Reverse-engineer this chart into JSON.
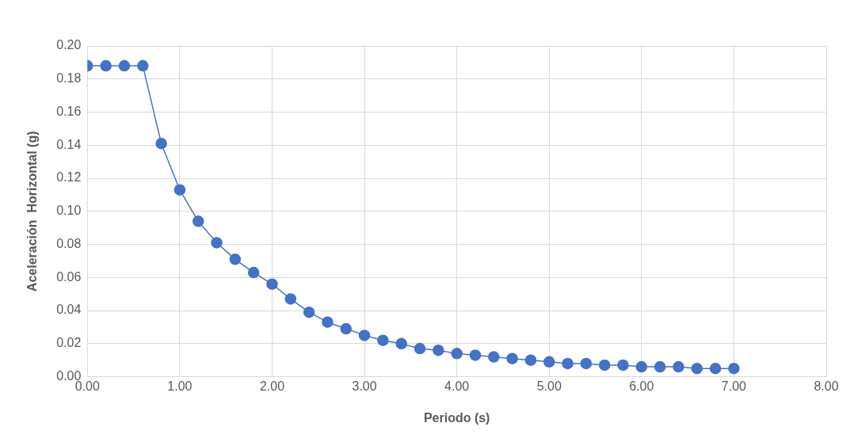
{
  "chart_data": {
    "type": "line",
    "xlabel": "Periodo (s)",
    "ylabel": "Aceleración  Horizontal (g)",
    "x": [
      0,
      0.2,
      0.4,
      0.6,
      0.8,
      1.0,
      1.2,
      1.4,
      1.6,
      1.8,
      2.0,
      2.2,
      2.4,
      2.6,
      2.8,
      3.0,
      3.2,
      3.4,
      3.6,
      3.8,
      4.0,
      4.2,
      4.4,
      4.6,
      4.8,
      5.0,
      5.2,
      5.4,
      5.6,
      5.8,
      6.0,
      6.2,
      6.4,
      6.6,
      6.8,
      7.0
    ],
    "series": [
      {
        "color": "#4472c4",
        "values": [
          0.188,
          0.188,
          0.188,
          0.188,
          0.141,
          0.113,
          0.094,
          0.081,
          0.071,
          0.063,
          0.056,
          0.047,
          0.039,
          0.033,
          0.029,
          0.025,
          0.022,
          0.02,
          0.017,
          0.016,
          0.014,
          0.013,
          0.012,
          0.011,
          0.01,
          0.009,
          0.008,
          0.008,
          0.007,
          0.007,
          0.006,
          0.006,
          0.006,
          0.005,
          0.005,
          0.005
        ]
      }
    ],
    "xlim": [
      0,
      8
    ],
    "xticks": [
      {
        "value": 0,
        "label": "0.00"
      },
      {
        "value": 1,
        "label": "1.00"
      },
      {
        "value": 2,
        "label": "2.00"
      },
      {
        "value": 3,
        "label": "3.00"
      },
      {
        "value": 4,
        "label": "4.00"
      },
      {
        "value": 5,
        "label": "5.00"
      },
      {
        "value": 6,
        "label": "6.00"
      },
      {
        "value": 7,
        "label": "7.00"
      },
      {
        "value": 8,
        "label": "8.00"
      }
    ],
    "ylim": [
      0,
      0.2
    ],
    "yticks": [
      {
        "value": 0,
        "label": "0.00"
      },
      {
        "value": 0.02,
        "label": "0.02"
      },
      {
        "value": 0.04,
        "label": "0.04"
      },
      {
        "value": 0.06,
        "label": "0.06"
      },
      {
        "value": 0.08,
        "label": "0.08"
      },
      {
        "value": 0.1,
        "label": "0.10"
      },
      {
        "value": 0.12,
        "label": "0.12"
      },
      {
        "value": 0.14,
        "label": "0.14"
      },
      {
        "value": 0.16,
        "label": "0.16"
      },
      {
        "value": 0.18,
        "label": "0.18"
      },
      {
        "value": 0.2,
        "label": "0.20"
      }
    ],
    "grid": true,
    "marker": "circle",
    "line_style": "solid"
  }
}
